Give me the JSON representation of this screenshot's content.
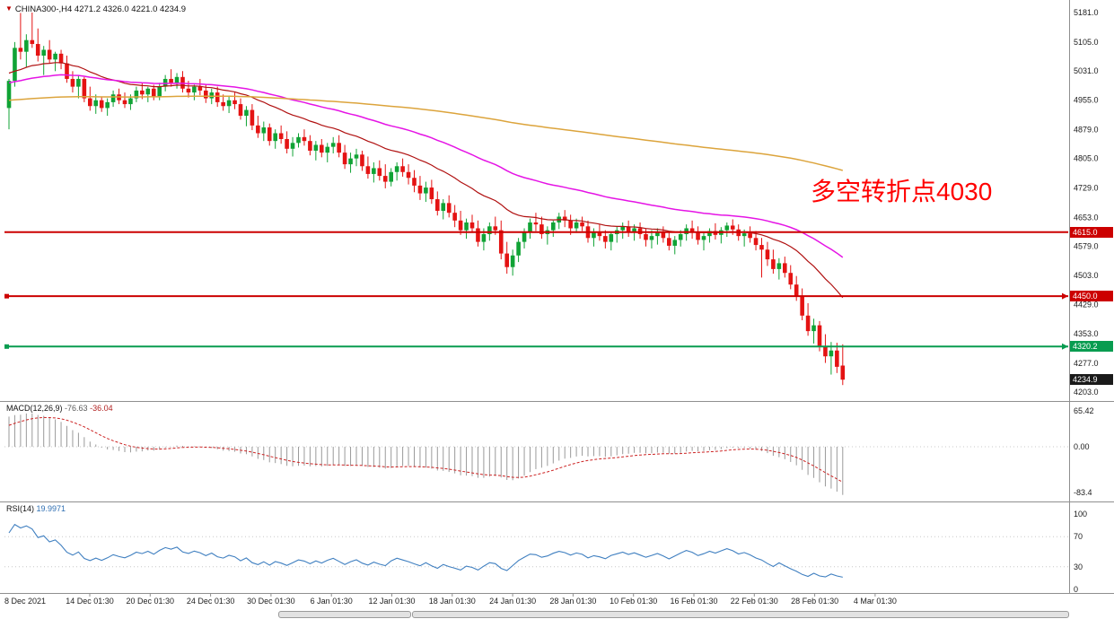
{
  "chart_header": {
    "symbol": "CHINA300-",
    "timeframe": "H4",
    "title": "CHINA300-,H4 4271.2 4326.0 4221.0 4234.9",
    "ohlc": {
      "open": "4271.2",
      "high": "4326.0",
      "low": "4221.0",
      "close": "4234.9"
    }
  },
  "annotation": {
    "text": "多空转折点4030",
    "color": "#ff0000"
  },
  "macd_panel": {
    "name": "MACD(12,26,9)",
    "value_main": "-76.63",
    "value_signal": "-36.04"
  },
  "rsi_panel": {
    "name": "RSI(14)",
    "value": "19.9971"
  },
  "colors": {
    "bull": "#10a335",
    "bear": "#e41313",
    "ma_fast": "#b01010",
    "ma_mid": "#e514e5",
    "ma_slow": "#dca43c",
    "macd_hist": "#9a9a9a",
    "macd_signal": "#cc2222",
    "rsi_line": "#3f7fc0",
    "tag_current_bg": "#1a1a1a",
    "axis_text": "#1a1a1a",
    "separator": "#8f8f8f"
  },
  "chart_data": {
    "type": "candlestick",
    "title": "CHINA300-,H4",
    "symbol": "CHINA300-",
    "timeframe": "H4",
    "ylim": [
      4203.0,
      5181.0
    ],
    "y_ticks": [
      5181.0,
      5105.0,
      5031.0,
      4955.0,
      4879.0,
      4805.0,
      4729.0,
      4653.0,
      4579.0,
      4503.0,
      4429.0,
      4353.0,
      4277.0,
      4203.0
    ],
    "x_labels": [
      "8 Dec 2021",
      "14 Dec 01:30",
      "20 Dec 01:30",
      "24 Dec 01:30",
      "30 Dec 01:30",
      "6 Jan 01:30",
      "12 Jan 01:30",
      "18 Jan 01:30",
      "24 Jan 01:30",
      "28 Jan 01:30",
      "10 Feb 01:30",
      "16 Feb 01:30",
      "22 Feb 01:30",
      "28 Feb 01:30",
      "4 Mar 01:30"
    ],
    "candles": [
      [
        4935,
        5010,
        4880,
        5005
      ],
      [
        5005,
        5105,
        4990,
        5090
      ],
      [
        5090,
        5180,
        5060,
        5080
      ],
      [
        5080,
        5125,
        5040,
        5110
      ],
      [
        5110,
        5181,
        5090,
        5100
      ],
      [
        5100,
        5140,
        5055,
        5070
      ],
      [
        5070,
        5095,
        5020,
        5085
      ],
      [
        5085,
        5110,
        5050,
        5060
      ],
      [
        5060,
        5080,
        5030,
        5075
      ],
      [
        5075,
        5085,
        5035,
        5050
      ],
      [
        5050,
        5070,
        5000,
        5010
      ],
      [
        5010,
        5030,
        4975,
        4990
      ],
      [
        4990,
        5020,
        4960,
        5010
      ],
      [
        5010,
        5015,
        4950,
        4960
      ],
      [
        4960,
        4990,
        4928,
        4940
      ],
      [
        4940,
        4970,
        4920,
        4955
      ],
      [
        4955,
        4965,
        4925,
        4935
      ],
      [
        4935,
        4960,
        4915,
        4950
      ],
      [
        4950,
        4980,
        4938,
        4970
      ],
      [
        4970,
        4985,
        4945,
        4955
      ],
      [
        4955,
        4975,
        4935,
        4945
      ],
      [
        4945,
        4970,
        4930,
        4960
      ],
      [
        4960,
        4990,
        4950,
        4980
      ],
      [
        4980,
        5000,
        4958,
        4970
      ],
      [
        4970,
        4990,
        4950,
        4985
      ],
      [
        4985,
        4995,
        4955,
        4965
      ],
      [
        4965,
        5000,
        4955,
        4990
      ],
      [
        4990,
        5020,
        4978,
        5010
      ],
      [
        5010,
        5035,
        4990,
        5000
      ],
      [
        5000,
        5025,
        4985,
        5015
      ],
      [
        5015,
        5030,
        4975,
        4985
      ],
      [
        4985,
        5005,
        4962,
        4975
      ],
      [
        4975,
        4995,
        4955,
        4990
      ],
      [
        4990,
        5010,
        4968,
        4980
      ],
      [
        4980,
        4995,
        4948,
        4960
      ],
      [
        4960,
        4985,
        4945,
        4975
      ],
      [
        4975,
        4990,
        4938,
        4950
      ],
      [
        4950,
        4970,
        4928,
        4940
      ],
      [
        4940,
        4965,
        4922,
        4955
      ],
      [
        4955,
        4975,
        4932,
        4945
      ],
      [
        4945,
        4960,
        4905,
        4915
      ],
      [
        4915,
        4940,
        4888,
        4930
      ],
      [
        4930,
        4945,
        4878,
        4890
      ],
      [
        4890,
        4915,
        4858,
        4870
      ],
      [
        4870,
        4900,
        4850,
        4885
      ],
      [
        4885,
        4895,
        4838,
        4850
      ],
      [
        4850,
        4880,
        4830,
        4870
      ],
      [
        4870,
        4890,
        4843,
        4855
      ],
      [
        4855,
        4875,
        4818,
        4830
      ],
      [
        4830,
        4860,
        4810,
        4845
      ],
      [
        4845,
        4870,
        4833,
        4860
      ],
      [
        4860,
        4880,
        4838,
        4850
      ],
      [
        4850,
        4865,
        4813,
        4825
      ],
      [
        4825,
        4850,
        4800,
        4840
      ],
      [
        4840,
        4855,
        4808,
        4820
      ],
      [
        4820,
        4845,
        4795,
        4835
      ],
      [
        4835,
        4860,
        4818,
        4845
      ],
      [
        4845,
        4865,
        4808,
        4820
      ],
      [
        4820,
        4840,
        4778,
        4790
      ],
      [
        4790,
        4820,
        4768,
        4805
      ],
      [
        4805,
        4830,
        4785,
        4815
      ],
      [
        4815,
        4825,
        4773,
        4785
      ],
      [
        4785,
        4810,
        4753,
        4765
      ],
      [
        4765,
        4795,
        4743,
        4780
      ],
      [
        4780,
        4800,
        4748,
        4760
      ],
      [
        4760,
        4790,
        4728,
        4745
      ],
      [
        4745,
        4780,
        4733,
        4770
      ],
      [
        4770,
        4795,
        4748,
        4785
      ],
      [
        4785,
        4805,
        4758,
        4770
      ],
      [
        4770,
        4790,
        4738,
        4755
      ],
      [
        4755,
        4775,
        4718,
        4735
      ],
      [
        4735,
        4760,
        4698,
        4715
      ],
      [
        4715,
        4745,
        4693,
        4730
      ],
      [
        4730,
        4750,
        4688,
        4700
      ],
      [
        4700,
        4720,
        4658,
        4670
      ],
      [
        4670,
        4700,
        4648,
        4690
      ],
      [
        4690,
        4710,
        4653,
        4665
      ],
      [
        4665,
        4685,
        4628,
        4645
      ],
      [
        4645,
        4670,
        4608,
        4620
      ],
      [
        4620,
        4650,
        4598,
        4640
      ],
      [
        4640,
        4660,
        4613,
        4625
      ],
      [
        4625,
        4645,
        4578,
        4590
      ],
      [
        4590,
        4625,
        4568,
        4610
      ],
      [
        4610,
        4640,
        4593,
        4630
      ],
      [
        4630,
        4655,
        4608,
        4620
      ],
      [
        4620,
        4645,
        4545,
        4560
      ],
      [
        4560,
        4590,
        4508,
        4525
      ],
      [
        4525,
        4570,
        4503,
        4555
      ],
      [
        4555,
        4600,
        4538,
        4590
      ],
      [
        4590,
        4625,
        4573,
        4615
      ],
      [
        4615,
        4650,
        4598,
        4640
      ],
      [
        4640,
        4665,
        4618,
        4635
      ],
      [
        4635,
        4655,
        4598,
        4610
      ],
      [
        4610,
        4630,
        4583,
        4620
      ],
      [
        4620,
        4645,
        4603,
        4640
      ],
      [
        4640,
        4665,
        4623,
        4655
      ],
      [
        4655,
        4672,
        4628,
        4645
      ],
      [
        4645,
        4660,
        4608,
        4625
      ],
      [
        4625,
        4650,
        4613,
        4640
      ],
      [
        4640,
        4655,
        4618,
        4630
      ],
      [
        4630,
        4645,
        4588,
        4600
      ],
      [
        4600,
        4625,
        4578,
        4615
      ],
      [
        4615,
        4635,
        4593,
        4605
      ],
      [
        4605,
        4620,
        4573,
        4590
      ],
      [
        4590,
        4615,
        4568,
        4610
      ],
      [
        4610,
        4630,
        4588,
        4620
      ],
      [
        4620,
        4640,
        4598,
        4630
      ],
      [
        4630,
        4645,
        4603,
        4615
      ],
      [
        4615,
        4635,
        4593,
        4625
      ],
      [
        4625,
        4640,
        4598,
        4610
      ],
      [
        4610,
        4625,
        4578,
        4595
      ],
      [
        4595,
        4620,
        4573,
        4605
      ],
      [
        4605,
        4625,
        4583,
        4615
      ],
      [
        4615,
        4630,
        4588,
        4600
      ],
      [
        4600,
        4615,
        4568,
        4580
      ],
      [
        4580,
        4605,
        4558,
        4595
      ],
      [
        4595,
        4620,
        4578,
        4610
      ],
      [
        4610,
        4635,
        4593,
        4625
      ],
      [
        4625,
        4645,
        4598,
        4615
      ],
      [
        4615,
        4630,
        4583,
        4595
      ],
      [
        4595,
        4615,
        4568,
        4605
      ],
      [
        4605,
        4625,
        4588,
        4618
      ],
      [
        4618,
        4638,
        4596,
        4608
      ],
      [
        4608,
        4628,
        4586,
        4620
      ],
      [
        4620,
        4640,
        4603,
        4632
      ],
      [
        4632,
        4648,
        4608,
        4622
      ],
      [
        4622,
        4635,
        4593,
        4605
      ],
      [
        4605,
        4622,
        4578,
        4612
      ],
      [
        4612,
        4630,
        4588,
        4600
      ],
      [
        4600,
        4618,
        4568,
        4582
      ],
      [
        4582,
        4600,
        4498,
        4570
      ],
      [
        4570,
        4590,
        4528,
        4545
      ],
      [
        4545,
        4570,
        4508,
        4520
      ],
      [
        4520,
        4548,
        4493,
        4535
      ],
      [
        4535,
        4552,
        4498,
        4510
      ],
      [
        4510,
        4530,
        4468,
        4480
      ],
      [
        4480,
        4502,
        4438,
        4450
      ],
      [
        4450,
        4470,
        4388,
        4400
      ],
      [
        4400,
        4432,
        4348,
        4360
      ],
      [
        4360,
        4392,
        4328,
        4375
      ],
      [
        4375,
        4386,
        4308,
        4320
      ],
      [
        4320,
        4352,
        4278,
        4295
      ],
      [
        4295,
        4332,
        4248,
        4310
      ],
      [
        4310,
        4330,
        4252,
        4268
      ],
      [
        4271.2,
        4326,
        4221,
        4234.9
      ]
    ],
    "moving_averages": [
      {
        "name": "fast",
        "period": 25,
        "seed_offset": 20,
        "color": "#b01010",
        "width": 1.2
      },
      {
        "name": "medium",
        "period": 60,
        "seed_offset": -5,
        "color": "#e514e5",
        "width": 1.5
      },
      {
        "name": "slow",
        "period": 260,
        "seed_offset": -50,
        "color": "#dca43c",
        "width": 1.5
      }
    ],
    "hlines": [
      {
        "price": 4615.0,
        "label": "4615.0",
        "color": "#cc0000",
        "width": 2,
        "markers": false
      },
      {
        "price": 4450.0,
        "label": "4450.0",
        "color": "#cc0000",
        "width": 2,
        "markers": true
      },
      {
        "price": 4320.2,
        "label": "4320.2",
        "color": "#089c50",
        "width": 2,
        "markers": true
      }
    ],
    "current_price": {
      "value": 4234.9,
      "label": "4234.9"
    },
    "macd": {
      "params": "12,26,9",
      "value_main": -76.63,
      "value_signal": -36.04,
      "axis": [
        {
          "v": 65.42,
          "label": "65.42"
        },
        {
          "v": 0,
          "label": "0.00"
        },
        {
          "v": -83.4,
          "label": "-83.4"
        }
      ]
    },
    "rsi": {
      "period": 14,
      "value": 19.9971,
      "levels": [
        70,
        30
      ],
      "axis": [
        {
          "v": 100,
          "label": "100"
        },
        {
          "v": 70,
          "label": "70"
        },
        {
          "v": 30,
          "label": "30"
        },
        {
          "v": 0,
          "label": "0"
        }
      ]
    }
  }
}
